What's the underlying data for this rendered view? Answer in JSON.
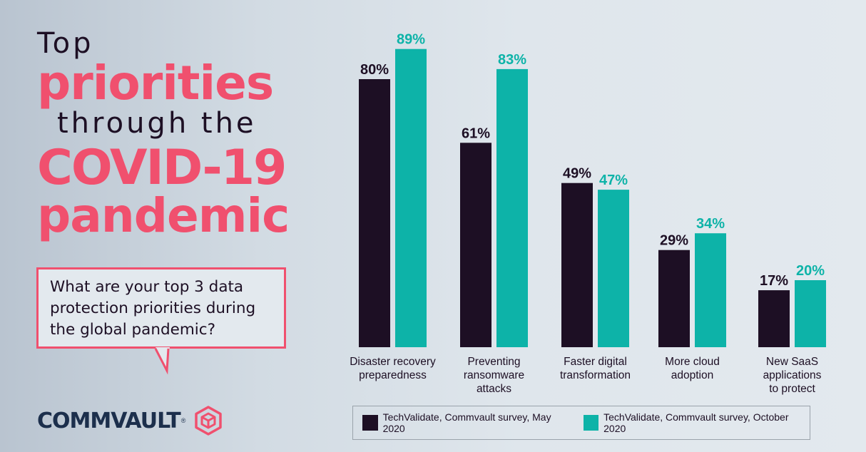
{
  "headline": {
    "line1": "Top",
    "line2": "priorities",
    "line3": "through the",
    "line4": "COVID-19",
    "line5": "pandemic"
  },
  "question": "What are your top 3 data protection priorities during the global pandemic?",
  "brand": {
    "name": "COMMVAULT",
    "registered": "®"
  },
  "colors": {
    "dark_series": "#1d0f24",
    "teal_series": "#0db3a8",
    "accent_pink": "#f0506e",
    "brand_navy": "#1c2f4c"
  },
  "chart_data": {
    "type": "bar",
    "categories": [
      [
        "Disaster recovery",
        "preparedness"
      ],
      [
        "Preventing",
        "ransomware",
        "attacks"
      ],
      [
        "Faster digital",
        "transformation"
      ],
      [
        "More cloud",
        "adoption"
      ],
      [
        "New SaaS",
        "applications",
        "to protect"
      ]
    ],
    "series": [
      {
        "name": "TechValidate, Commvault survey, May 2020",
        "values": [
          80,
          61,
          49,
          29,
          17
        ],
        "labels": [
          "80%",
          "61%",
          "49%",
          "29%",
          "17%"
        ],
        "color": "#1d0f24"
      },
      {
        "name": "TechValidate, Commvault survey, October 2020",
        "values": [
          89,
          83,
          47,
          34,
          20
        ],
        "labels": [
          "89%",
          "83%",
          "47%",
          "34%",
          "20%"
        ],
        "color": "#0db3a8"
      }
    ],
    "unit": "%",
    "ylim": [
      0,
      100
    ],
    "legend_position": "bottom",
    "grid": false
  }
}
